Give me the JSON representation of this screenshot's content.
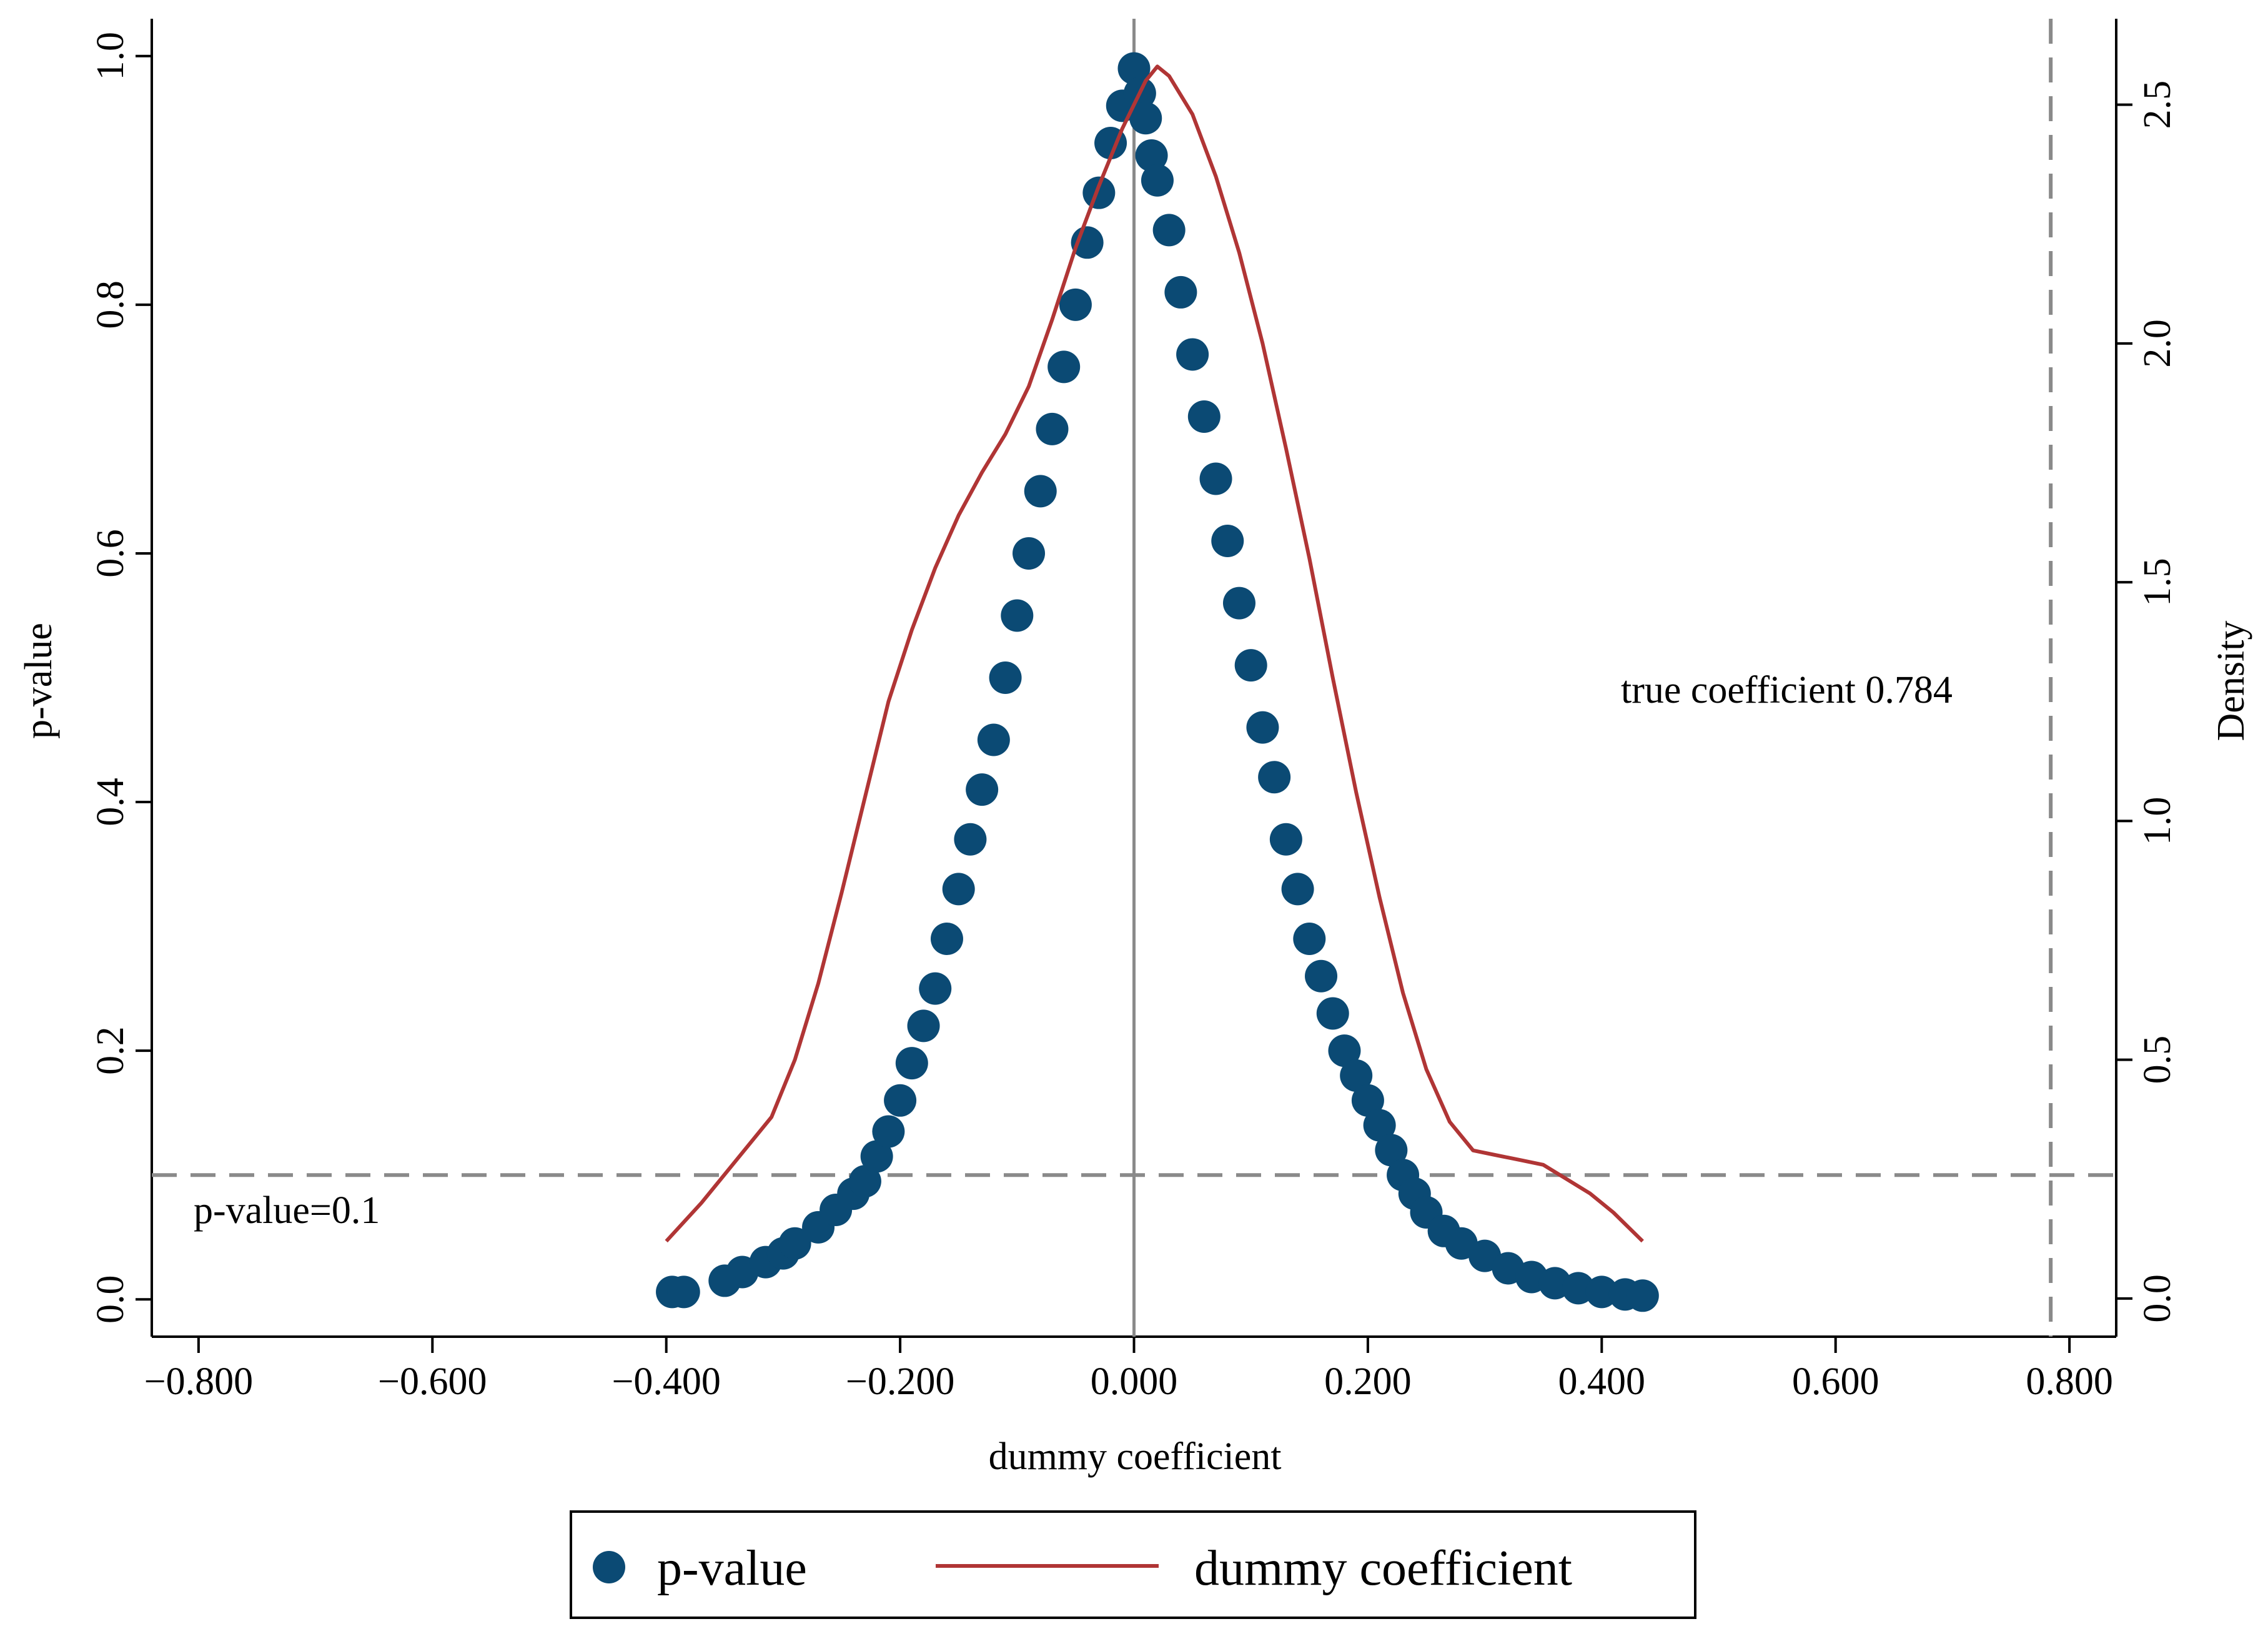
{
  "chart_data": {
    "type": "scatter",
    "title": "",
    "xlabel": "dummy coefficient",
    "ylabel": "p-value",
    "y2label": "Density",
    "xlim": [
      -0.84,
      0.84
    ],
    "ylim": [
      -0.03,
      1.03
    ],
    "y2lim": [
      -0.08,
      2.68
    ],
    "x_ticks": [
      -0.8,
      -0.6,
      -0.4,
      -0.2,
      0.0,
      0.2,
      0.4,
      0.6,
      0.8
    ],
    "x_tick_labels": [
      "−0.800",
      "−0.600",
      "−0.400",
      "−0.200",
      "0.000",
      "0.200",
      "0.400",
      "0.600",
      "0.800"
    ],
    "y_ticks": [
      0.0,
      0.2,
      0.4,
      0.6,
      0.8,
      1.0
    ],
    "y_tick_labels": [
      "0.0",
      "0.2",
      "0.4",
      "0.6",
      "0.8",
      "1.0"
    ],
    "y2_ticks": [
      0.0,
      0.5,
      1.0,
      1.5,
      2.0,
      2.5
    ],
    "y2_tick_labels": [
      "0.0",
      "0.5",
      "1.0",
      "1.5",
      "2.0",
      "2.5"
    ],
    "grid": false,
    "legend_position": "bottom",
    "colors": {
      "pvalue": "#0b4a74",
      "density": "#b03535",
      "reference": "#8a8a8a"
    },
    "reference_lines": {
      "vertical_zero": 0.0,
      "true_coefficient_x": 0.784,
      "pvalue_threshold_y": 0.1
    },
    "annotations": [
      {
        "text": "true coefficient 0.784",
        "x": 0.41,
        "y": 0.49
      },
      {
        "text": "p-value=0.1",
        "x": -0.805,
        "y": 0.073
      }
    ],
    "series": [
      {
        "name": "p-value",
        "kind": "scatter",
        "axis": "left",
        "x": [
          -0.395,
          -0.385,
          -0.35,
          -0.335,
          -0.315,
          -0.3,
          -0.29,
          -0.27,
          -0.255,
          -0.24,
          -0.23,
          -0.22,
          -0.21,
          -0.2,
          -0.19,
          -0.18,
          -0.17,
          -0.16,
          -0.15,
          -0.14,
          -0.13,
          -0.12,
          -0.11,
          -0.1,
          -0.09,
          -0.08,
          -0.07,
          -0.06,
          -0.05,
          -0.04,
          -0.03,
          -0.02,
          -0.01,
          0.0,
          0.005,
          0.01,
          0.015,
          0.02,
          0.03,
          0.04,
          0.05,
          0.06,
          0.07,
          0.08,
          0.09,
          0.1,
          0.11,
          0.12,
          0.13,
          0.14,
          0.15,
          0.16,
          0.17,
          0.18,
          0.19,
          0.2,
          0.21,
          0.22,
          0.23,
          0.24,
          0.25,
          0.265,
          0.28,
          0.3,
          0.32,
          0.34,
          0.36,
          0.38,
          0.4,
          0.42,
          0.435
        ],
        "y": [
          0.006,
          0.006,
          0.015,
          0.022,
          0.03,
          0.037,
          0.045,
          0.058,
          0.072,
          0.085,
          0.095,
          0.115,
          0.135,
          0.16,
          0.19,
          0.22,
          0.25,
          0.29,
          0.33,
          0.37,
          0.41,
          0.45,
          0.5,
          0.55,
          0.6,
          0.65,
          0.7,
          0.75,
          0.8,
          0.85,
          0.89,
          0.93,
          0.96,
          0.99,
          0.97,
          0.95,
          0.92,
          0.9,
          0.86,
          0.81,
          0.76,
          0.71,
          0.66,
          0.61,
          0.56,
          0.51,
          0.46,
          0.42,
          0.37,
          0.33,
          0.29,
          0.26,
          0.23,
          0.2,
          0.18,
          0.16,
          0.14,
          0.12,
          0.1,
          0.085,
          0.07,
          0.055,
          0.045,
          0.035,
          0.025,
          0.018,
          0.013,
          0.009,
          0.006,
          0.004,
          0.003
        ]
      },
      {
        "name": "dummy coefficient",
        "kind": "line",
        "axis": "right",
        "x": [
          -0.4,
          -0.37,
          -0.34,
          -0.31,
          -0.29,
          -0.27,
          -0.25,
          -0.23,
          -0.21,
          -0.19,
          -0.17,
          -0.15,
          -0.13,
          -0.11,
          -0.09,
          -0.07,
          -0.05,
          -0.03,
          -0.01,
          0.0,
          0.01,
          0.02,
          0.03,
          0.05,
          0.07,
          0.09,
          0.11,
          0.13,
          0.15,
          0.17,
          0.19,
          0.21,
          0.23,
          0.25,
          0.27,
          0.29,
          0.31,
          0.33,
          0.35,
          0.37,
          0.39,
          0.41,
          0.435
        ],
        "y": [
          0.12,
          0.2,
          0.29,
          0.38,
          0.5,
          0.66,
          0.85,
          1.05,
          1.25,
          1.4,
          1.53,
          1.64,
          1.73,
          1.81,
          1.91,
          2.05,
          2.2,
          2.33,
          2.45,
          2.5,
          2.55,
          2.58,
          2.56,
          2.48,
          2.35,
          2.19,
          2.0,
          1.78,
          1.55,
          1.3,
          1.06,
          0.84,
          0.64,
          0.48,
          0.37,
          0.31,
          0.3,
          0.29,
          0.28,
          0.25,
          0.22,
          0.18,
          0.12
        ]
      }
    ]
  }
}
